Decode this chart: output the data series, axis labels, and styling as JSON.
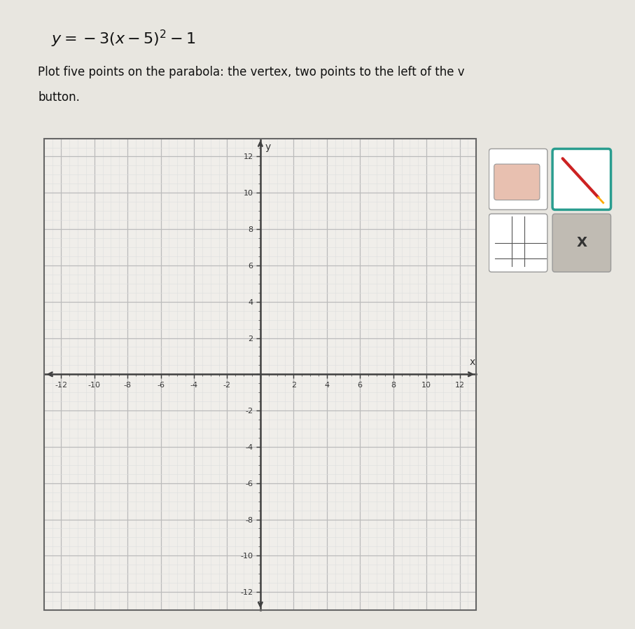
{
  "xlim": [
    -13,
    13
  ],
  "ylim": [
    -13,
    13
  ],
  "major_ticks": 2,
  "minor_ticks": 0.5,
  "axis_color": "#404040",
  "grid_major_color": "#bbbbbb",
  "grid_minor_color": "#dedede",
  "plot_bg": "#f0eeea",
  "page_bg": "#e8e6e0",
  "tick_fontsize": 8,
  "label_fontsize": 10,
  "equation_text": "$y=-3(x-5)^2-1$",
  "instruction_line1": "Plot five points on the parabola: the vertex, two points to the left of the v",
  "instruction_line2": "button.",
  "border_color": "#666666"
}
